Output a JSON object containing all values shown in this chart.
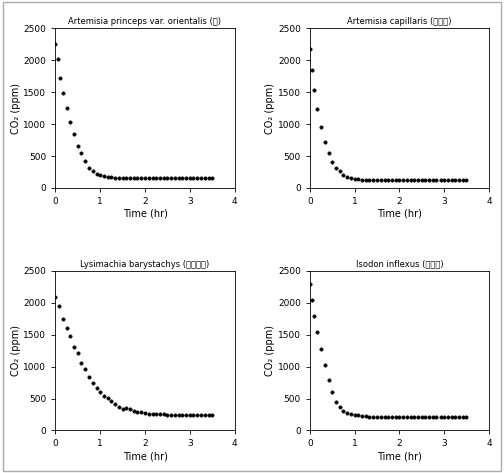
{
  "titles": [
    "Artemisia princeps var. orientalis (숙)",
    "Artemisia capillaris (사철숙)",
    "Lysimachia barystachys (까치수영)",
    "Isodon inflexus (산박하)"
  ],
  "titles_ascii": [
    "Artemisia princeps var. orientalis (숙)",
    "Artemisia capillaris (사철숙)",
    "Lysimachia barystachys (까치수영)",
    "Isodon inflexus (산박하)"
  ],
  "ylabel": "CO₂ (ppm)",
  "xlabel": "Time (hr)",
  "xlim": [
    0,
    4.0
  ],
  "ylim": [
    0,
    2500
  ],
  "yticks": [
    0,
    500,
    1000,
    1500,
    2000,
    2500
  ],
  "xticks": [
    0.0,
    1.0,
    2.0,
    3.0,
    4.0
  ],
  "marker": "o",
  "marker_size": 2.5,
  "marker_color": "black",
  "bg_color": "#ffffff",
  "plot_bg_color": "white",
  "fig_edge_color": "#888888",
  "data_pr21_x": [
    0.0,
    0.05,
    0.1,
    0.17,
    0.25,
    0.33,
    0.42,
    0.5,
    0.58,
    0.67,
    0.75,
    0.83,
    0.92,
    1.0,
    1.08,
    1.17,
    1.25,
    1.33,
    1.42,
    1.5,
    1.58,
    1.67,
    1.75,
    1.83,
    1.92,
    2.0,
    2.08,
    2.17,
    2.25,
    2.33,
    2.42,
    2.5,
    2.58,
    2.67,
    2.75,
    2.83,
    2.92,
    3.0,
    3.08,
    3.17,
    3.25,
    3.33,
    3.42,
    3.5
  ],
  "data_pr21_y": [
    2250,
    2020,
    1720,
    1490,
    1250,
    1040,
    840,
    650,
    545,
    415,
    320,
    260,
    215,
    195,
    180,
    175,
    165,
    160,
    155,
    152,
    150,
    150,
    150,
    148,
    148,
    148,
    148,
    148,
    148,
    148,
    148,
    148,
    148,
    150,
    150,
    150,
    150,
    152,
    152,
    152,
    152,
    152,
    152,
    152
  ],
  "data_pr22_x": [
    0.0,
    0.05,
    0.1,
    0.17,
    0.25,
    0.33,
    0.42,
    0.5,
    0.58,
    0.67,
    0.75,
    0.83,
    0.92,
    1.0,
    1.08,
    1.17,
    1.25,
    1.33,
    1.42,
    1.5,
    1.58,
    1.67,
    1.75,
    1.83,
    1.92,
    2.0,
    2.08,
    2.17,
    2.25,
    2.33,
    2.42,
    2.5,
    2.58,
    2.67,
    2.75,
    2.83,
    2.92,
    3.0,
    3.08,
    3.17,
    3.25,
    3.33,
    3.42,
    3.5
  ],
  "data_pr22_y": [
    2170,
    1850,
    1530,
    1230,
    960,
    720,
    540,
    400,
    320,
    260,
    210,
    175,
    155,
    140,
    132,
    128,
    125,
    122,
    120,
    118,
    118,
    118,
    118,
    118,
    118,
    118,
    118,
    118,
    118,
    118,
    118,
    118,
    118,
    118,
    118,
    118,
    118,
    118,
    118,
    118,
    118,
    118,
    118,
    118
  ],
  "data_pr23_x": [
    0.0,
    0.08,
    0.17,
    0.25,
    0.33,
    0.42,
    0.5,
    0.58,
    0.67,
    0.75,
    0.83,
    0.92,
    1.0,
    1.08,
    1.17,
    1.25,
    1.33,
    1.42,
    1.5,
    1.58,
    1.67,
    1.75,
    1.83,
    1.92,
    2.0,
    2.08,
    2.17,
    2.25,
    2.33,
    2.42,
    2.5,
    2.58,
    2.67,
    2.75,
    2.83,
    2.92,
    3.0,
    3.08,
    3.17,
    3.25,
    3.33,
    3.42,
    3.5
  ],
  "data_pr23_y": [
    2090,
    1950,
    1750,
    1600,
    1475,
    1310,
    1210,
    1060,
    970,
    840,
    740,
    660,
    600,
    545,
    510,
    460,
    410,
    365,
    340,
    350,
    330,
    300,
    295,
    285,
    270,
    265,
    260,
    255,
    252,
    250,
    248,
    245,
    243,
    240,
    240,
    240,
    238,
    238,
    238,
    238,
    238,
    238,
    238
  ],
  "data_pr24_x": [
    0.0,
    0.05,
    0.1,
    0.17,
    0.25,
    0.33,
    0.42,
    0.5,
    0.58,
    0.67,
    0.75,
    0.83,
    0.92,
    1.0,
    1.08,
    1.17,
    1.25,
    1.33,
    1.42,
    1.5,
    1.58,
    1.67,
    1.75,
    1.83,
    1.92,
    2.0,
    2.08,
    2.17,
    2.25,
    2.33,
    2.42,
    2.5,
    2.58,
    2.67,
    2.75,
    2.83,
    2.92,
    3.0,
    3.08,
    3.17,
    3.25,
    3.33,
    3.42,
    3.5
  ],
  "data_pr24_y": [
    2300,
    2050,
    1800,
    1550,
    1280,
    1030,
    790,
    600,
    450,
    370,
    310,
    280,
    255,
    240,
    235,
    228,
    222,
    218,
    215,
    212,
    210,
    208,
    207,
    207,
    206,
    206,
    205,
    205,
    205,
    205,
    205,
    205,
    205,
    205,
    205,
    205,
    205,
    205,
    205,
    205,
    205,
    205,
    205,
    205
  ]
}
